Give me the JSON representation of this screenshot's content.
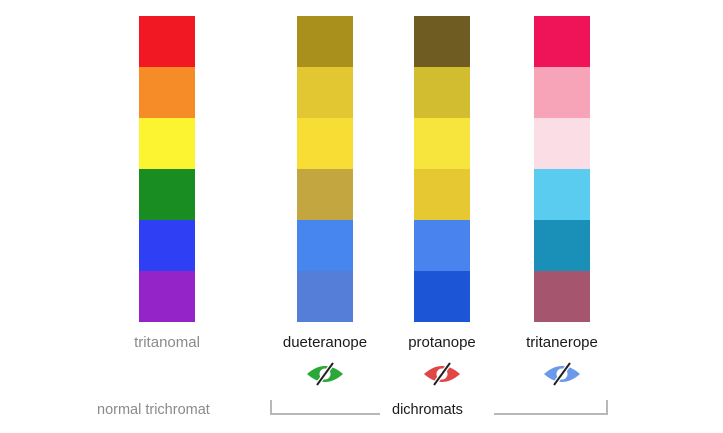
{
  "columns": [
    {
      "label": "tritanomal",
      "label_color": "#8a8a8a",
      "swatches": [
        "#f21823",
        "#f68c27",
        "#fcf430",
        "#198c22",
        "#2f3ff4",
        "#9423c8"
      ]
    },
    {
      "label": "dueteranope",
      "label_color": "#1a1a1a",
      "swatches": [
        "#a98f1b",
        "#e2c632",
        "#f8dd34",
        "#c4a641",
        "#4886ef",
        "#557ed9"
      ],
      "eye_icon": "green-eye-slash-icon",
      "eye_color": "#2aa83a"
    },
    {
      "label": "protanope",
      "label_color": "#1a1a1a",
      "swatches": [
        "#6e5c22",
        "#d2bd31",
        "#f7e43c",
        "#e6c833",
        "#4983ee",
        "#1c56d6"
      ],
      "eye_icon": "red-eye-slash-icon",
      "eye_color": "#e04848"
    },
    {
      "label": "tritanerope",
      "label_color": "#1a1a1a",
      "swatches": [
        "#ef1458",
        "#f7a3b8",
        "#fbdde6",
        "#5accef",
        "#1a8fb8",
        "#a5566e"
      ],
      "eye_icon": "blue-eye-slash-icon",
      "eye_color": "#6b9be8"
    }
  ],
  "footer": {
    "left_label": "normal trichromat",
    "bracket_label": "dichromats"
  },
  "colors": {
    "secondary_text": "#8a8a8a",
    "bracket": "#b8b8b8"
  }
}
